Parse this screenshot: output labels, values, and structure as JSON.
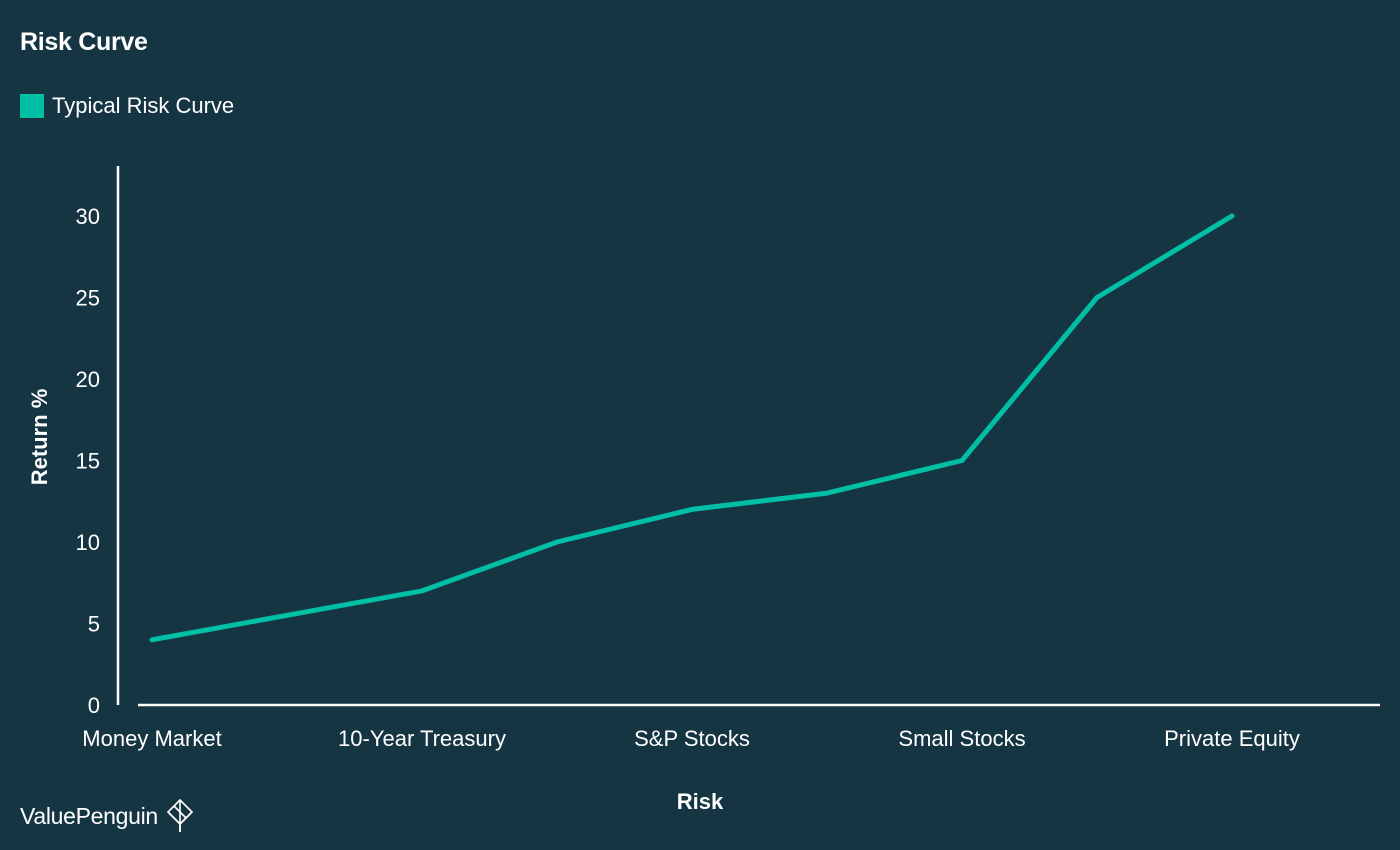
{
  "chart_data": {
    "type": "line",
    "title": "Risk Curve",
    "xlabel": "Risk",
    "ylabel": "Return %",
    "categories": [
      "Money Market",
      "10-Year Treasury",
      "S&P Stocks",
      "Small Stocks",
      "Private Equity"
    ],
    "x": [
      1,
      2,
      3,
      4,
      5,
      6,
      7,
      8,
      9
    ],
    "series": [
      {
        "name": "Typical Risk Curve",
        "color": "#00bfa5",
        "values": [
          4,
          5.5,
          7,
          10,
          12,
          13,
          15,
          25,
          30
        ]
      }
    ],
    "yticks": [
      0,
      5,
      10,
      15,
      20,
      25,
      30
    ],
    "ylim": [
      0,
      33
    ],
    "grid": false,
    "legend": "top-left"
  },
  "colors": {
    "background": "#163543",
    "accent": "#00bfa5",
    "axis": "#ffffff"
  },
  "brand": {
    "name": "ValuePenguin",
    "icon": "valuepenguin-logo-icon"
  }
}
